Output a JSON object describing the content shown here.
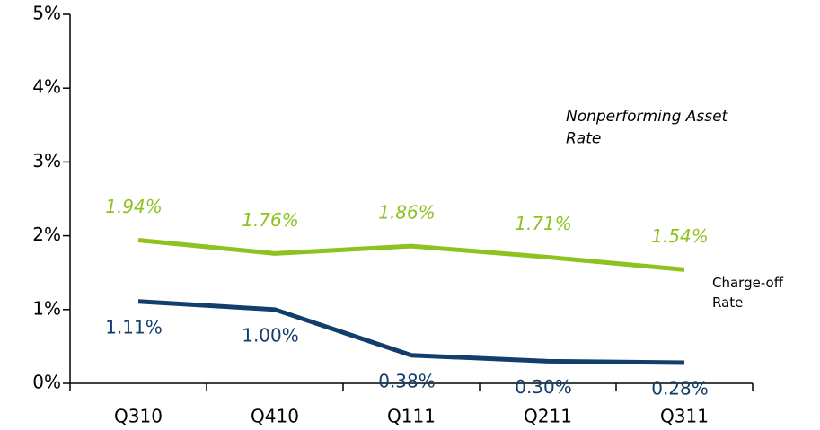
{
  "chart_data": {
    "type": "line",
    "categories": [
      "Q310",
      "Q410",
      "Q111",
      "Q211",
      "Q311"
    ],
    "series": [
      {
        "name": "Nonperforming Asset Rate",
        "color": "#8dc21f",
        "values": [
          1.94,
          1.76,
          1.86,
          1.71,
          1.54
        ],
        "value_labels": [
          "1.94%",
          "1.76%",
          "1.86%",
          "1.71%",
          "1.54%"
        ]
      },
      {
        "name": "Charge-off Rate",
        "color": "#123e6b",
        "values": [
          1.11,
          1.0,
          0.38,
          0.3,
          0.28
        ],
        "value_labels": [
          "1.11%",
          "1.00%",
          "0.38%",
          "0.30%",
          "0.28%"
        ]
      }
    ],
    "ylim": [
      0,
      5
    ],
    "yticks": [
      {
        "value": 0,
        "label": "0%"
      },
      {
        "value": 1,
        "label": "1%"
      },
      {
        "value": 2,
        "label": "2%"
      },
      {
        "value": 3,
        "label": "3%"
      },
      {
        "value": 4,
        "label": "4%"
      },
      {
        "value": 5,
        "label": "5%"
      }
    ],
    "grid": false
  }
}
